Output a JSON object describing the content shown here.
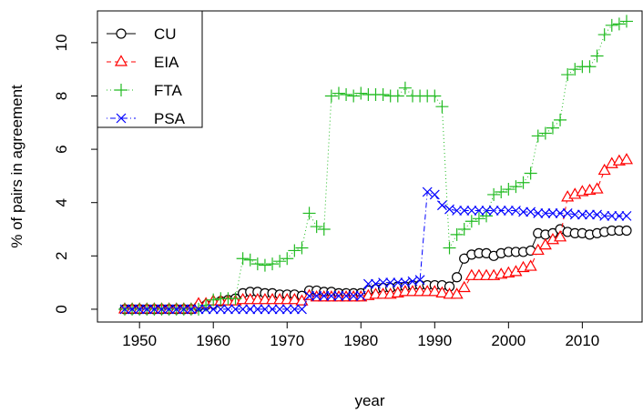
{
  "chart_data": {
    "type": "line",
    "x_label": "year",
    "y_label": "% of pairs in agreement",
    "x": [
      1948,
      1949,
      1950,
      1951,
      1952,
      1953,
      1954,
      1955,
      1956,
      1957,
      1958,
      1959,
      1960,
      1961,
      1962,
      1963,
      1964,
      1965,
      1966,
      1967,
      1968,
      1969,
      1970,
      1971,
      1972,
      1973,
      1974,
      1975,
      1976,
      1977,
      1978,
      1979,
      1980,
      1981,
      1982,
      1983,
      1984,
      1985,
      1986,
      1987,
      1988,
      1989,
      1990,
      1991,
      1992,
      1993,
      1994,
      1995,
      1996,
      1997,
      1998,
      1999,
      2000,
      2001,
      2002,
      2003,
      2004,
      2005,
      2006,
      2007,
      2008,
      2009,
      2010,
      2011,
      2012,
      2013,
      2014,
      2015,
      2016
    ],
    "xlim": [
      1944.3,
      2018.1
    ],
    "xticks": [
      1950,
      1960,
      1970,
      1980,
      1990,
      2000,
      2010
    ],
    "ylim": [
      -0.48,
      11.19
    ],
    "yticks": [
      0,
      2,
      4,
      6,
      8,
      10
    ],
    "legend": "top-left",
    "series": [
      {
        "name": "CU",
        "color": "#000000",
        "line_style": "solid",
        "marker": "circle",
        "values": [
          0,
          0,
          0,
          0,
          0,
          0,
          0,
          0,
          0,
          0,
          0.1,
          0.15,
          0.2,
          0.3,
          0.35,
          0.4,
          0.6,
          0.65,
          0.65,
          0.6,
          0.6,
          0.55,
          0.55,
          0.55,
          0.5,
          0.7,
          0.7,
          0.65,
          0.65,
          0.6,
          0.6,
          0.6,
          0.6,
          0.7,
          0.75,
          0.8,
          0.8,
          0.85,
          0.85,
          0.9,
          0.9,
          0.9,
          0.9,
          0.9,
          0.85,
          1.2,
          1.9,
          2.05,
          2.1,
          2.1,
          2.0,
          2.1,
          2.15,
          2.15,
          2.15,
          2.2,
          2.85,
          2.8,
          2.85,
          3.0,
          2.9,
          2.85,
          2.85,
          2.8,
          2.85,
          2.9,
          2.95,
          2.95,
          2.95
        ]
      },
      {
        "name": "EIA",
        "color": "#ff0000",
        "line_style": "dashed",
        "marker": "triangle",
        "values": [
          0,
          0,
          0,
          0,
          0,
          0,
          0,
          0,
          0,
          0,
          0.2,
          0.2,
          0.3,
          0.3,
          0.3,
          0.3,
          0.35,
          0.35,
          0.35,
          0.35,
          0.35,
          0.35,
          0.35,
          0.35,
          0.3,
          0.5,
          0.45,
          0.45,
          0.45,
          0.45,
          0.45,
          0.45,
          0.45,
          0.5,
          0.55,
          0.55,
          0.55,
          0.6,
          0.65,
          0.65,
          0.65,
          0.65,
          0.65,
          0.6,
          0.55,
          0.55,
          0.8,
          1.25,
          1.25,
          1.25,
          1.25,
          1.3,
          1.35,
          1.4,
          1.55,
          1.6,
          2.2,
          2.4,
          2.6,
          2.7,
          4.2,
          4.3,
          4.4,
          4.45,
          4.5,
          5.2,
          5.45,
          5.55,
          5.6
        ]
      },
      {
        "name": "FTA",
        "color": "#22bb22",
        "line_style": "dotted",
        "marker": "plus",
        "values": [
          0,
          0,
          0,
          0,
          0,
          0,
          0,
          0,
          0,
          0,
          0,
          0.15,
          0.35,
          0.4,
          0.4,
          0.4,
          1.9,
          1.85,
          1.7,
          1.65,
          1.7,
          1.8,
          1.9,
          2.2,
          2.3,
          3.6,
          3.1,
          3.0,
          8.0,
          8.1,
          8.05,
          8.0,
          8.1,
          8.05,
          8.05,
          8.05,
          8.0,
          8.0,
          8.3,
          8.0,
          8.0,
          8.0,
          8.0,
          7.6,
          2.3,
          2.8,
          3.0,
          3.3,
          3.4,
          3.5,
          4.3,
          4.4,
          4.5,
          4.6,
          4.75,
          5.1,
          6.5,
          6.6,
          6.8,
          7.1,
          8.8,
          9.0,
          9.1,
          9.1,
          9.5,
          10.3,
          10.65,
          10.7,
          10.8
        ]
      },
      {
        "name": "PSA",
        "color": "#0000ff",
        "line_style": "dotdash",
        "marker": "cross",
        "values": [
          0,
          0,
          0,
          0,
          0,
          0,
          0,
          0,
          0,
          0,
          0,
          0,
          0,
          0,
          0,
          0,
          0,
          0,
          0,
          0,
          0,
          0,
          0,
          0,
          0,
          0.5,
          0.5,
          0.5,
          0.5,
          0.5,
          0.5,
          0.5,
          0.5,
          0.95,
          0.95,
          1.0,
          1.0,
          1.0,
          1.0,
          1.05,
          1.1,
          4.4,
          4.3,
          3.9,
          3.75,
          3.7,
          3.7,
          3.7,
          3.7,
          3.7,
          3.7,
          3.7,
          3.7,
          3.7,
          3.65,
          3.65,
          3.6,
          3.6,
          3.6,
          3.6,
          3.6,
          3.55,
          3.55,
          3.55,
          3.55,
          3.5,
          3.5,
          3.5,
          3.5
        ]
      }
    ]
  }
}
